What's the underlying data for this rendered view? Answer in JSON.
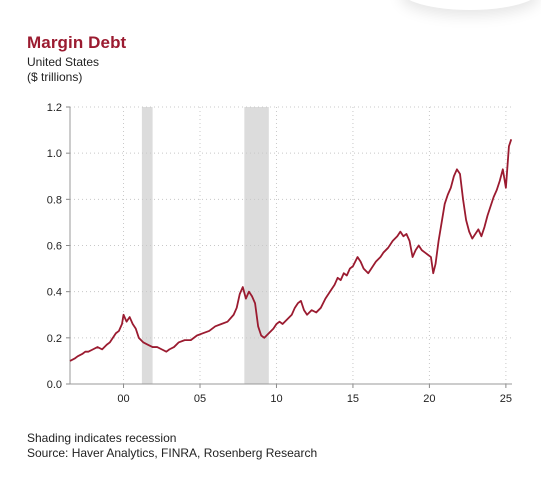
{
  "header": {
    "title": "Margin Debt",
    "subtitle": "United States",
    "units": "($ trillions)"
  },
  "footer": {
    "note": "Shading indicates recession",
    "source": "Source: Haver Analytics, FINRA, Rosenberg Research"
  },
  "colors": {
    "line": "#9b1b30",
    "recession": "#dcdcdc",
    "title": "#9b1b30"
  },
  "chart_data": {
    "type": "line",
    "title": "Margin Debt",
    "subtitle": "United States",
    "ylabel": "($ trillions)",
    "xlim": [
      1996.5,
      2025.4
    ],
    "ylim": [
      0,
      1.2
    ],
    "grid": true,
    "y_ticks": [
      0.0,
      0.2,
      0.4,
      0.6,
      0.8,
      1.0,
      1.2
    ],
    "y_tick_labels": [
      "0.0",
      "0.2",
      "0.4",
      "0.6",
      "0.8",
      "1.0",
      "1.2"
    ],
    "x_ticks": [
      2000,
      2005,
      2010,
      2015,
      2020,
      2025
    ],
    "x_tick_labels": [
      "00",
      "05",
      "10",
      "15",
      "20",
      "25"
    ],
    "recessions": [
      [
        2001.2,
        2001.9
      ],
      [
        2007.9,
        2009.5
      ]
    ],
    "series": [
      {
        "x": [
          1996.5,
          1996.8,
          1997.0,
          1997.3,
          1997.5,
          1997.7,
          1998.0,
          1998.3,
          1998.6,
          1998.9,
          1999.1,
          1999.3,
          1999.5,
          1999.7,
          1999.9,
          2000.0,
          2000.2,
          2000.4,
          2000.6,
          2000.8,
          2001.0,
          2001.3,
          2001.6,
          2001.9,
          2002.2,
          2002.5,
          2002.8,
          2003.0,
          2003.3,
          2003.6,
          2004.0,
          2004.4,
          2004.8,
          2005.2,
          2005.6,
          2006.0,
          2006.4,
          2006.8,
          2007.2,
          2007.4,
          2007.6,
          2007.8,
          2008.0,
          2008.2,
          2008.4,
          2008.6,
          2008.8,
          2009.0,
          2009.2,
          2009.5,
          2009.8,
          2010.0,
          2010.2,
          2010.4,
          2010.7,
          2011.0,
          2011.2,
          2011.4,
          2011.6,
          2011.8,
          2012.0,
          2012.3,
          2012.6,
          2012.9,
          2013.2,
          2013.5,
          2013.8,
          2014.0,
          2014.2,
          2014.4,
          2014.6,
          2014.8,
          2015.0,
          2015.3,
          2015.5,
          2015.7,
          2016.0,
          2016.2,
          2016.5,
          2016.8,
          2017.0,
          2017.3,
          2017.6,
          2017.9,
          2018.1,
          2018.3,
          2018.5,
          2018.7,
          2018.9,
          2019.1,
          2019.3,
          2019.5,
          2019.7,
          2019.9,
          2020.1,
          2020.25,
          2020.4,
          2020.6,
          2020.8,
          2021.0,
          2021.2,
          2021.4,
          2021.6,
          2021.8,
          2022.0,
          2022.2,
          2022.4,
          2022.6,
          2022.8,
          2023.0,
          2023.2,
          2023.4,
          2023.6,
          2023.8,
          2024.0,
          2024.2,
          2024.4,
          2024.6,
          2024.8,
          2025.0,
          2025.2,
          2025.35
        ],
        "values": [
          0.1,
          0.11,
          0.12,
          0.13,
          0.14,
          0.14,
          0.15,
          0.16,
          0.15,
          0.17,
          0.18,
          0.2,
          0.22,
          0.23,
          0.26,
          0.3,
          0.27,
          0.29,
          0.26,
          0.24,
          0.2,
          0.18,
          0.17,
          0.16,
          0.16,
          0.15,
          0.14,
          0.15,
          0.16,
          0.18,
          0.19,
          0.19,
          0.21,
          0.22,
          0.23,
          0.25,
          0.26,
          0.27,
          0.3,
          0.33,
          0.39,
          0.42,
          0.37,
          0.4,
          0.38,
          0.35,
          0.25,
          0.21,
          0.2,
          0.22,
          0.24,
          0.26,
          0.27,
          0.26,
          0.28,
          0.3,
          0.33,
          0.35,
          0.36,
          0.32,
          0.3,
          0.32,
          0.31,
          0.33,
          0.37,
          0.4,
          0.43,
          0.46,
          0.45,
          0.48,
          0.47,
          0.5,
          0.51,
          0.55,
          0.53,
          0.5,
          0.48,
          0.5,
          0.53,
          0.55,
          0.57,
          0.59,
          0.62,
          0.64,
          0.66,
          0.64,
          0.65,
          0.62,
          0.55,
          0.58,
          0.6,
          0.58,
          0.57,
          0.56,
          0.55,
          0.48,
          0.52,
          0.62,
          0.7,
          0.78,
          0.82,
          0.85,
          0.9,
          0.93,
          0.91,
          0.8,
          0.71,
          0.66,
          0.63,
          0.65,
          0.67,
          0.64,
          0.68,
          0.73,
          0.77,
          0.81,
          0.84,
          0.88,
          0.93,
          0.85,
          1.03,
          1.06
        ]
      }
    ]
  }
}
